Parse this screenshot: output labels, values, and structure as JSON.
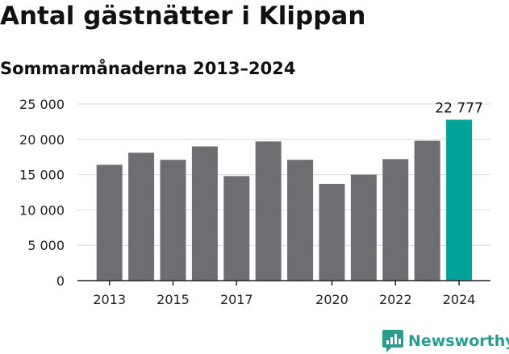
{
  "header": {
    "title": "Antal gästnätter i Klippan",
    "subtitle": "Sommarmånaderna 2013–2024"
  },
  "brand": {
    "name": "Newsworthy",
    "color": "#2a9d8f",
    "icon": "newsworthy-logo-icon"
  },
  "chart_data": {
    "type": "bar",
    "title": "Antal gästnätter i Klippan",
    "subtitle": "Sommarmånaderna 2013–2024",
    "xlabel": "",
    "ylabel": "",
    "categories": [
      "2013",
      "2014",
      "2015",
      "2016",
      "2017",
      "2018",
      "2019",
      "2020",
      "2021",
      "2022",
      "2023",
      "2024"
    ],
    "values": [
      16400,
      18100,
      17100,
      19000,
      14800,
      19700,
      17100,
      13700,
      15000,
      17200,
      19800,
      22777
    ],
    "x_tick_labels": [
      "2013",
      "",
      "2015",
      "",
      "2017",
      "",
      "",
      "2020",
      "",
      "2022",
      "",
      "2024"
    ],
    "ylim": [
      0,
      25000
    ],
    "y_ticks": [
      0,
      5000,
      10000,
      15000,
      20000,
      25000
    ],
    "y_tick_labels": [
      "0",
      "5 000",
      "10 000",
      "15 000",
      "20 000",
      "25 000"
    ],
    "highlight_index": 11,
    "highlight_label": "22 777",
    "colors": {
      "bar": "#6e6d72",
      "highlight": "#00a398",
      "grid": "#d9d9d9",
      "axis": "#222222"
    },
    "grid": true,
    "legend": "none"
  }
}
